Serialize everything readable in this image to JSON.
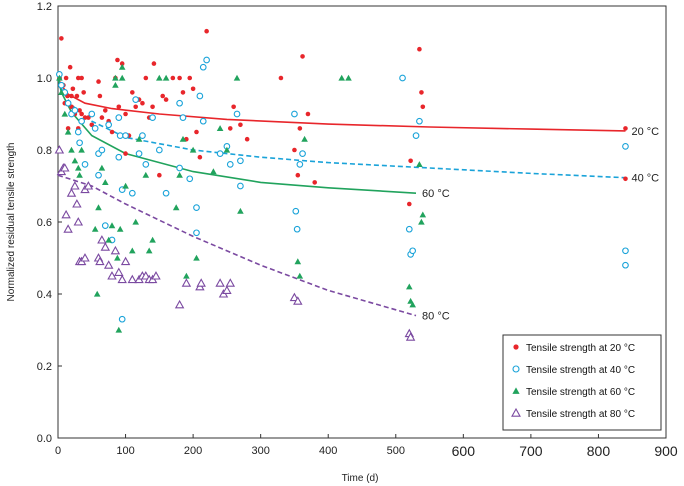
{
  "chart_data": {
    "type": "scatter",
    "title": "",
    "xlabel": "Time (d)",
    "ylabel": "Normalized  residual tensile strength",
    "xlim": [
      0,
      900
    ],
    "ylim": [
      0,
      1.2
    ],
    "x_ticks": [
      "0",
      "100",
      "200",
      "300",
      "400",
      "500",
      "600",
      "700",
      "800",
      "900"
    ],
    "y_ticks": [
      "0.0",
      "0.2",
      "0.4",
      "0.6",
      "0.8",
      "1.0",
      "1.2"
    ],
    "grid": false,
    "legend_position": "bottom-right",
    "series": [
      {
        "name": "Tensile strength at 20 °C",
        "marker": "filled-circle",
        "color": "#e8262b",
        "points": [
          [
            2,
            1.0
          ],
          [
            5,
            1.11
          ],
          [
            8,
            0.98
          ],
          [
            10,
            0.93
          ],
          [
            12,
            1.0
          ],
          [
            14,
            0.95
          ],
          [
            15,
            0.86
          ],
          [
            18,
            1.03
          ],
          [
            20,
            0.95
          ],
          [
            20,
            0.92
          ],
          [
            22,
            0.97
          ],
          [
            25,
            0.9
          ],
          [
            28,
            0.95
          ],
          [
            30,
            1.0
          ],
          [
            30,
            0.86
          ],
          [
            32,
            0.91
          ],
          [
            35,
            1.0
          ],
          [
            35,
            0.9
          ],
          [
            38,
            0.96
          ],
          [
            40,
            0.89
          ],
          [
            45,
            0.89
          ],
          [
            50,
            0.87
          ],
          [
            60,
            0.99
          ],
          [
            62,
            0.95
          ],
          [
            65,
            0.89
          ],
          [
            70,
            0.91
          ],
          [
            75,
            0.88
          ],
          [
            80,
            0.85
          ],
          [
            85,
            1.0
          ],
          [
            88,
            1.05
          ],
          [
            90,
            0.92
          ],
          [
            95,
            1.04
          ],
          [
            100,
            0.79
          ],
          [
            100,
            0.9
          ],
          [
            105,
            0.84
          ],
          [
            110,
            0.96
          ],
          [
            115,
            0.92
          ],
          [
            120,
            0.94
          ],
          [
            125,
            0.93
          ],
          [
            130,
            1.0
          ],
          [
            135,
            0.89
          ],
          [
            140,
            0.92
          ],
          [
            142,
            1.04
          ],
          [
            150,
            0.73
          ],
          [
            155,
            0.95
          ],
          [
            160,
            0.94
          ],
          [
            170,
            1.0
          ],
          [
            180,
            1.0
          ],
          [
            185,
            0.96
          ],
          [
            190,
            0.83
          ],
          [
            195,
            1.0
          ],
          [
            200,
            0.97
          ],
          [
            205,
            0.85
          ],
          [
            210,
            0.78
          ],
          [
            215,
            0.88
          ],
          [
            220,
            1.13
          ],
          [
            255,
            0.86
          ],
          [
            260,
            0.92
          ],
          [
            270,
            0.87
          ],
          [
            280,
            0.83
          ],
          [
            330,
            1.0
          ],
          [
            350,
            0.8
          ],
          [
            355,
            0.73
          ],
          [
            358,
            0.86
          ],
          [
            362,
            1.06
          ],
          [
            370,
            0.9
          ],
          [
            380,
            0.71
          ],
          [
            520,
            0.65
          ],
          [
            522,
            0.77
          ],
          [
            535,
            1.08
          ],
          [
            538,
            0.96
          ],
          [
            540,
            0.92
          ],
          [
            840,
            0.86
          ],
          [
            840,
            0.72
          ]
        ]
      },
      {
        "name": "Tensile strength at 40 °C",
        "marker": "open-circle",
        "color": "#1aa3d9",
        "points": [
          [
            2,
            1.01
          ],
          [
            5,
            0.98
          ],
          [
            10,
            0.96
          ],
          [
            15,
            0.93
          ],
          [
            20,
            0.9
          ],
          [
            25,
            0.91
          ],
          [
            30,
            0.85
          ],
          [
            32,
            0.82
          ],
          [
            35,
            0.88
          ],
          [
            40,
            0.76
          ],
          [
            50,
            0.9
          ],
          [
            55,
            0.86
          ],
          [
            60,
            0.73
          ],
          [
            60,
            0.79
          ],
          [
            65,
            0.8
          ],
          [
            70,
            0.59
          ],
          [
            75,
            0.87
          ],
          [
            80,
            0.55
          ],
          [
            90,
            0.78
          ],
          [
            90,
            0.89
          ],
          [
            92,
            0.84
          ],
          [
            95,
            0.69
          ],
          [
            95,
            0.33
          ],
          [
            100,
            0.84
          ],
          [
            110,
            0.68
          ],
          [
            115,
            0.94
          ],
          [
            120,
            0.79
          ],
          [
            125,
            0.84
          ],
          [
            130,
            0.76
          ],
          [
            140,
            0.89
          ],
          [
            150,
            0.8
          ],
          [
            160,
            0.68
          ],
          [
            180,
            0.93
          ],
          [
            180,
            0.75
          ],
          [
            185,
            0.89
          ],
          [
            195,
            0.72
          ],
          [
            205,
            0.64
          ],
          [
            205,
            0.57
          ],
          [
            210,
            0.95
          ],
          [
            215,
            0.88
          ],
          [
            215,
            1.03
          ],
          [
            220,
            1.05
          ],
          [
            240,
            0.79
          ],
          [
            250,
            0.81
          ],
          [
            255,
            0.76
          ],
          [
            265,
            0.9
          ],
          [
            270,
            0.7
          ],
          [
            270,
            0.77
          ],
          [
            350,
            0.9
          ],
          [
            352,
            0.63
          ],
          [
            354,
            0.58
          ],
          [
            358,
            0.76
          ],
          [
            362,
            0.79
          ],
          [
            510,
            1.0
          ],
          [
            520,
            0.58
          ],
          [
            522,
            0.51
          ],
          [
            525,
            0.52
          ],
          [
            530,
            0.84
          ],
          [
            535,
            0.88
          ],
          [
            840,
            0.81
          ],
          [
            840,
            0.52
          ],
          [
            840,
            0.48
          ]
        ]
      },
      {
        "name": "Tensile strength at 60 °C",
        "marker": "filled-triangle",
        "color": "#21a35d",
        "points": [
          [
            2,
            1.0
          ],
          [
            5,
            0.96
          ],
          [
            10,
            0.9
          ],
          [
            15,
            0.85
          ],
          [
            20,
            0.8
          ],
          [
            25,
            0.77
          ],
          [
            30,
            0.75
          ],
          [
            32,
            0.73
          ],
          [
            35,
            0.8
          ],
          [
            40,
            0.69
          ],
          [
            55,
            0.58
          ],
          [
            58,
            0.4
          ],
          [
            60,
            0.64
          ],
          [
            65,
            0.75
          ],
          [
            70,
            0.71
          ],
          [
            75,
            0.55
          ],
          [
            80,
            0.59
          ],
          [
            85,
            0.98
          ],
          [
            85,
            1.0
          ],
          [
            88,
            0.5
          ],
          [
            90,
            0.3
          ],
          [
            92,
            0.58
          ],
          [
            95,
            1.0
          ],
          [
            95,
            1.03
          ],
          [
            100,
            0.7
          ],
          [
            110,
            0.52
          ],
          [
            115,
            0.6
          ],
          [
            120,
            0.83
          ],
          [
            130,
            0.73
          ],
          [
            135,
            0.52
          ],
          [
            140,
            0.55
          ],
          [
            150,
            1.0
          ],
          [
            160,
            1.0
          ],
          [
            175,
            0.64
          ],
          [
            180,
            0.73
          ],
          [
            185,
            0.83
          ],
          [
            190,
            0.45
          ],
          [
            200,
            0.8
          ],
          [
            205,
            0.5
          ],
          [
            210,
            0.42
          ],
          [
            230,
            0.74
          ],
          [
            240,
            0.86
          ],
          [
            250,
            0.8
          ],
          [
            265,
            1.0
          ],
          [
            270,
            0.63
          ],
          [
            355,
            0.49
          ],
          [
            358,
            0.45
          ],
          [
            365,
            0.83
          ],
          [
            420,
            1.0
          ],
          [
            430,
            1.0
          ],
          [
            520,
            0.42
          ],
          [
            522,
            0.38
          ],
          [
            525,
            0.37
          ],
          [
            535,
            0.76
          ],
          [
            538,
            0.6
          ],
          [
            540,
            0.62
          ]
        ]
      },
      {
        "name": "Tensile strength at 80 °C",
        "marker": "open-triangle",
        "color": "#7b4aa1",
        "points": [
          [
            2,
            0.8
          ],
          [
            5,
            0.74
          ],
          [
            8,
            0.75
          ],
          [
            10,
            0.75
          ],
          [
            12,
            0.62
          ],
          [
            15,
            0.58
          ],
          [
            20,
            0.68
          ],
          [
            25,
            0.7
          ],
          [
            28,
            0.65
          ],
          [
            30,
            0.6
          ],
          [
            32,
            0.49
          ],
          [
            35,
            0.49
          ],
          [
            40,
            0.5
          ],
          [
            40,
            0.69
          ],
          [
            45,
            0.7
          ],
          [
            60,
            0.5
          ],
          [
            62,
            0.49
          ],
          [
            65,
            0.55
          ],
          [
            70,
            0.53
          ],
          [
            75,
            0.48
          ],
          [
            80,
            0.45
          ],
          [
            85,
            0.52
          ],
          [
            90,
            0.46
          ],
          [
            95,
            0.44
          ],
          [
            100,
            0.49
          ],
          [
            110,
            0.44
          ],
          [
            120,
            0.44
          ],
          [
            125,
            0.45
          ],
          [
            130,
            0.45
          ],
          [
            135,
            0.44
          ],
          [
            140,
            0.44
          ],
          [
            145,
            0.45
          ],
          [
            180,
            0.37
          ],
          [
            190,
            0.43
          ],
          [
            210,
            0.42
          ],
          [
            212,
            0.43
          ],
          [
            240,
            0.43
          ],
          [
            245,
            0.4
          ],
          [
            250,
            0.41
          ],
          [
            255,
            0.43
          ],
          [
            350,
            0.39
          ],
          [
            355,
            0.38
          ],
          [
            520,
            0.29
          ],
          [
            522,
            0.28
          ]
        ]
      }
    ],
    "fitted_curves": [
      {
        "label": "20 °C",
        "color": "#e8262b",
        "style": "solid",
        "points": [
          [
            0,
            1.0
          ],
          [
            5,
            0.98
          ],
          [
            15,
            0.955
          ],
          [
            40,
            0.93
          ],
          [
            80,
            0.915
          ],
          [
            150,
            0.9
          ],
          [
            250,
            0.885
          ],
          [
            400,
            0.872
          ],
          [
            550,
            0.864
          ],
          [
            700,
            0.858
          ],
          [
            840,
            0.853
          ]
        ]
      },
      {
        "label": "40 °C",
        "color": "#1aa3d9",
        "style": "dashed",
        "points": [
          [
            0,
            1.0
          ],
          [
            5,
            0.97
          ],
          [
            20,
            0.925
          ],
          [
            50,
            0.88
          ],
          [
            100,
            0.835
          ],
          [
            200,
            0.8
          ],
          [
            300,
            0.78
          ],
          [
            400,
            0.765
          ],
          [
            550,
            0.75
          ],
          [
            700,
            0.735
          ],
          [
            840,
            0.723
          ]
        ]
      },
      {
        "label": "60 °C",
        "color": "#21a35d",
        "style": "solid",
        "points": [
          [
            0,
            1.0
          ],
          [
            5,
            0.96
          ],
          [
            20,
            0.905
          ],
          [
            50,
            0.84
          ],
          [
            100,
            0.79
          ],
          [
            200,
            0.74
          ],
          [
            300,
            0.71
          ],
          [
            400,
            0.695
          ],
          [
            530,
            0.68
          ]
        ]
      },
      {
        "label": "80 °C",
        "color": "#7b4aa1",
        "style": "dashed",
        "points": [
          [
            0,
            0.73
          ],
          [
            50,
            0.7
          ],
          [
            100,
            0.65
          ],
          [
            200,
            0.56
          ],
          [
            300,
            0.48
          ],
          [
            400,
            0.41
          ],
          [
            530,
            0.34
          ]
        ]
      }
    ]
  }
}
